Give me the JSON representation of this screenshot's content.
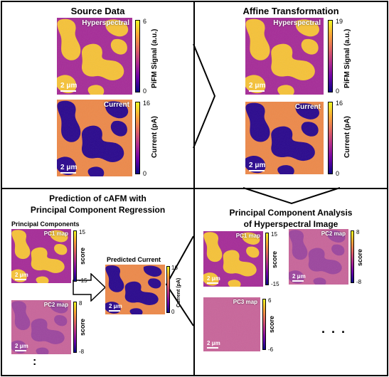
{
  "panels": {
    "source": {
      "title": "Source Data",
      "hyper": {
        "label": "Hyperspectral",
        "scale": "2  μm",
        "cbar_max": "6",
        "cbar_min": "0",
        "cbar_label": "PiFM Signal (a.u.)"
      },
      "current": {
        "label": "Current",
        "scale": "2  μm",
        "cbar_max": "16",
        "cbar_min": "0",
        "cbar_label": "Current (pA)"
      }
    },
    "affine": {
      "title": "Affine Transformation",
      "hyper": {
        "label": "Hyperspectral",
        "scale": "2  μm",
        "cbar_max": "19",
        "cbar_min": "0",
        "cbar_label": "PiFM Signal (a.u.)"
      },
      "current": {
        "label": "Current",
        "scale": "2  μm",
        "cbar_max": "16",
        "cbar_min": "0",
        "cbar_label": "Current (pA)"
      }
    },
    "prediction": {
      "title_line1": "Prediction of cAFM with",
      "title_line2": "Principal Component Regression",
      "pc_header": "Principal Components",
      "pc1": {
        "label": "PC1 map",
        "scale": "2  μm",
        "cbar_max": "15",
        "cbar_min": "-15",
        "cbar_label": "score"
      },
      "pc2": {
        "label": "PC2 map",
        "scale": "2  μm",
        "cbar_max": "8",
        "cbar_min": "-8",
        "cbar_label": "score"
      },
      "ellipsis": ":",
      "predicted_title": "Predicted Current",
      "predicted": {
        "scale": "2  μm",
        "cbar_max": "16",
        "cbar_min": "0",
        "cbar_label": "Current (pA)"
      }
    },
    "pca": {
      "title_line1": "Principal Component Analysis",
      "title_line2": "of Hyperspectral Image",
      "pc1": {
        "label": "PC1 map",
        "scale": "2  μm",
        "cbar_max": "15",
        "cbar_min": "-15",
        "cbar_label": "score"
      },
      "pc2": {
        "label": "PC2 map",
        "scale": "2  μm",
        "cbar_max": "8",
        "cbar_min": "-8",
        "cbar_label": "score"
      },
      "pc3": {
        "label": "PC3 map",
        "scale": "2  μm",
        "cbar_max": "6",
        "cbar_min": "-6",
        "cbar_label": "score"
      },
      "ellipsis": ". . ."
    }
  },
  "colors": {
    "low": "#2a0a8c",
    "mid": "#a42c97",
    "high": "#f6c43a",
    "pc3": "#c8659a"
  }
}
